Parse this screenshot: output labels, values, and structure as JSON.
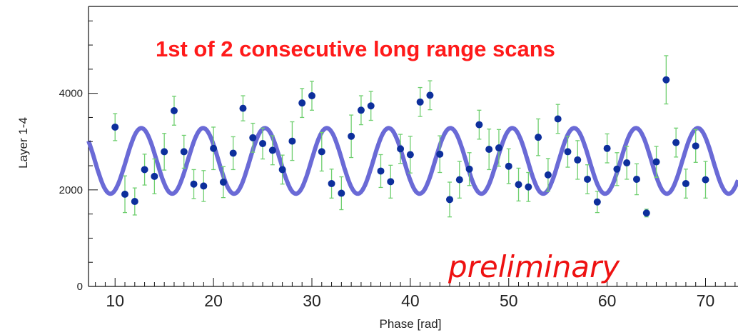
{
  "chart_data": {
    "type": "scatter",
    "title": "",
    "xlabel": "Phase [rad]",
    "ylabel": "Layer 1-4",
    "xlim": [
      7.3,
      73.3
    ],
    "ylim": [
      0,
      5800
    ],
    "x_ticks": [
      "10",
      "20",
      "30",
      "40",
      "50",
      "60",
      "70"
    ],
    "y_ticks": [
      "0",
      "2000",
      "4000"
    ],
    "annotations": [
      "1st of 2 consecutive long range scans",
      "preliminary"
    ],
    "grid": false,
    "colors": {
      "points": "#0d2f9c",
      "errorbars": "#6fcf6f",
      "fit": "#6a6ad6",
      "annotation": "#ff1a1a"
    },
    "fit": {
      "name": "",
      "mean": 2600,
      "amplitude": 680,
      "period": 6.2832,
      "phase_offset": 0.1
    },
    "series": [
      {
        "name": "",
        "x": [
          10,
          11,
          12,
          13,
          14,
          15,
          16,
          17,
          18,
          19,
          20,
          21,
          22,
          23,
          24,
          25,
          26,
          27,
          28,
          29,
          30,
          31,
          32,
          33,
          34,
          35,
          36,
          37,
          38,
          39,
          40,
          41,
          42,
          43,
          44,
          45,
          46,
          47,
          48,
          49,
          50,
          51,
          52,
          53,
          54,
          55,
          56,
          57,
          58,
          59,
          60,
          61,
          62,
          63,
          64,
          65,
          66,
          67,
          68,
          69,
          70
        ],
        "y": [
          3300,
          1910,
          1760,
          2420,
          2280,
          2790,
          3640,
          2790,
          2120,
          2080,
          2860,
          2160,
          2760,
          3690,
          3080,
          2960,
          2820,
          2420,
          3010,
          3800,
          3950,
          2790,
          2130,
          1930,
          3110,
          3650,
          3740,
          2390,
          2170,
          2850,
          2730,
          3820,
          3960,
          2740,
          1800,
          2210,
          2430,
          3350,
          2840,
          2870,
          2490,
          2110,
          2060,
          3090,
          2310,
          3470,
          2790,
          2620,
          2220,
          1750,
          2860,
          2430,
          2560,
          2220,
          1520,
          2580,
          4280,
          2980,
          2130,
          2910,
          2210
        ],
        "errors": [
          280,
          380,
          280,
          320,
          360,
          380,
          300,
          340,
          300,
          320,
          440,
          320,
          340,
          260,
          300,
          320,
          300,
          300,
          400,
          300,
          300,
          400,
          300,
          340,
          440,
          300,
          300,
          340,
          340,
          300,
          380,
          300,
          300,
          380,
          360,
          380,
          340,
          300,
          420,
          380,
          360,
          340,
          300,
          380,
          340,
          300,
          320,
          400,
          300,
          220,
          300,
          340,
          340,
          320,
          80,
          320,
          500,
          300,
          300,
          340,
          380
        ]
      }
    ]
  }
}
